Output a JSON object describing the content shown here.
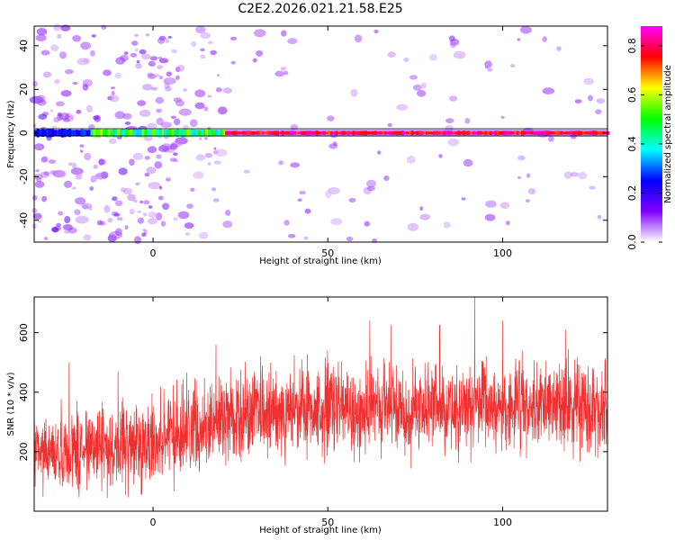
{
  "figure": {
    "title": "C2E2.2026.021.21.58.E25"
  },
  "chart_data": [
    {
      "type": "heatmap",
      "xlabel": "Height of straight line (km)",
      "ylabel": "Frequency (Hz)",
      "xlim": [
        -34,
        130
      ],
      "ylim": [
        -50,
        49
      ],
      "xticks": [
        0,
        50,
        100
      ],
      "yticks": [
        -40,
        -20,
        0,
        20,
        40
      ],
      "ridge_frequency": 0,
      "colorbar": {
        "label": "Normalized spectral amplitude",
        "range": [
          0.0,
          0.88
        ],
        "ticks": [
          0.0,
          0.2,
          0.4,
          0.6,
          0.8
        ],
        "tick_labels": [
          "0.0",
          "0.2",
          "0.4",
          "0.6",
          "0.8"
        ],
        "colormap": [
          "#ffffff",
          "#7f00ff",
          "#0000ff",
          "#00ffff",
          "#00ff00",
          "#ffff00",
          "#ff0000",
          "#ff00ff"
        ]
      },
      "grid": false
    },
    {
      "type": "line",
      "xlabel": "Height of straight line (km)",
      "ylabel": "SNR (10 * v/v)",
      "xlim": [
        -34,
        130
      ],
      "ylim": [
        0,
        720
      ],
      "xticks": [
        0,
        50,
        100
      ],
      "yticks": [
        200,
        400,
        600
      ],
      "color": "#f03030",
      "trend": {
        "x": [
          -34,
          0,
          20,
          50,
          100,
          130
        ],
        "y": [
          190,
          230,
          320,
          340,
          350,
          360
        ]
      },
      "spread": 110,
      "peaks": {
        "x": [
          -24,
          -10,
          18,
          62,
          68,
          82,
          92,
          100,
          118
        ],
        "y": [
          500,
          470,
          560,
          640,
          625,
          625,
          720,
          640,
          610
        ]
      },
      "grid": false
    }
  ]
}
